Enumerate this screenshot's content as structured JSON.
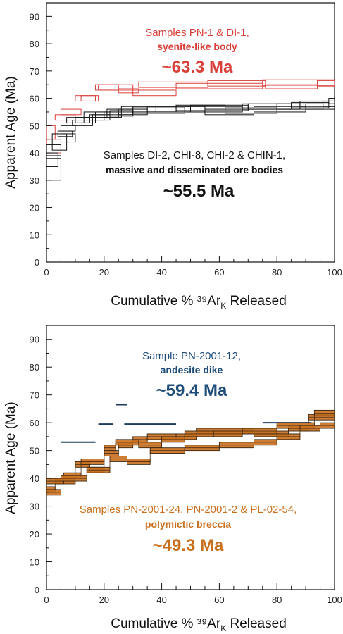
{
  "chart_data": [
    {
      "type": "line",
      "title": "",
      "xlabel": "Cumulative % ³⁹Ar",
      "xlabel_sub": "K",
      "xlabel_tail": " Released",
      "ylabel": "Apparent Age (Ma)",
      "xlim": [
        0,
        100
      ],
      "ylim": [
        0,
        95
      ],
      "xticks": [
        "0",
        "20",
        "40",
        "60",
        "80",
        "100"
      ],
      "yticks": [
        "0",
        "10",
        "20",
        "30",
        "40",
        "50",
        "60",
        "70",
        "80",
        "90"
      ],
      "grid": false,
      "annotations": [
        {
          "text": "Samples PN-1 & DI-1,",
          "color": "#d9403a",
          "weight": "normal",
          "size": 15
        },
        {
          "text": "syenite-like body",
          "color": "#d9403a",
          "weight": "bold",
          "size": 14
        },
        {
          "text": "~63.3 Ma",
          "color": "#d9403a",
          "weight": "bold",
          "size": 24
        },
        {
          "text": "Samples DI-2, CHI-8, CHI-2 & CHIN-1,",
          "color": "#111111",
          "weight": "normal",
          "size": 15
        },
        {
          "text": "massive and disseminated ore bodies",
          "color": "#111111",
          "weight": "bold",
          "size": 14
        },
        {
          "text": "~55.5 Ma",
          "color": "#111111",
          "weight": "bold",
          "size": 24
        }
      ],
      "series": [
        {
          "color": "#d9403a",
          "steps": [
            [
              0,
              40,
              45
            ],
            [
              5,
              54,
              56
            ],
            [
              12,
              59,
              61
            ],
            [
              17,
              63,
              65
            ],
            [
              25,
              62,
              63.5
            ],
            [
              32,
              64,
              66
            ],
            [
              56,
              64.5,
              66.5
            ],
            [
              76,
              63.5,
              65
            ],
            [
              94,
              64.5,
              66.5
            ]
          ]
        },
        {
          "color": "#d9403a",
          "steps": [
            [
              0,
              45,
              50
            ],
            [
              3,
              52,
              54
            ],
            [
              10,
              59,
              61
            ],
            [
              18,
              63,
              65
            ],
            [
              30,
              61,
              63
            ],
            [
              45,
              63.5,
              65.5
            ],
            [
              75,
              64.8,
              66.8
            ]
          ]
        },
        {
          "color": "#111111",
          "steps": [
            [
              0,
              30,
              38
            ],
            [
              5,
              48,
              50
            ],
            [
              10,
              51,
              53
            ],
            [
              15,
              52,
              54
            ],
            [
              20,
              53,
              55
            ],
            [
              25,
              54,
              56
            ],
            [
              35,
              55,
              57
            ],
            [
              50,
              55.5,
              57.5
            ],
            [
              70,
              56,
              58
            ],
            [
              85,
              56.5,
              58.5
            ],
            [
              98,
              58,
              60
            ]
          ]
        },
        {
          "color": "#111111",
          "steps": [
            [
              0,
              35,
              40
            ],
            [
              4,
              46,
              48
            ],
            [
              9,
              50,
              52
            ],
            [
              16,
              52,
              54
            ],
            [
              22,
              53.5,
              55.5
            ],
            [
              30,
              54.5,
              56.5
            ],
            [
              48,
              55,
              57
            ],
            [
              68,
              56,
              58
            ],
            [
              88,
              57,
              59
            ]
          ]
        },
        {
          "color": "#111111",
          "steps": [
            [
              0,
              39,
              43
            ],
            [
              5,
              44,
              47
            ],
            [
              10,
              51,
              53
            ],
            [
              17,
              53,
              55
            ],
            [
              26,
              55,
              57
            ],
            [
              38,
              55,
              57
            ],
            [
              55,
              54,
              56
            ],
            [
              72,
              55,
              57
            ],
            [
              90,
              56,
              58
            ]
          ]
        },
        {
          "color": "#111111",
          "steps": [
            [
              2,
              41,
              47
            ],
            [
              7,
              51,
              53
            ],
            [
              13,
              53,
              55
            ],
            [
              21,
              54,
              56
            ],
            [
              30,
              55,
              57
            ],
            [
              45,
              55.5,
              57.5
            ],
            [
              62,
              54.5,
              56.5
            ],
            [
              80,
              56,
              58
            ],
            [
              96,
              57,
              59
            ]
          ]
        }
      ]
    },
    {
      "type": "line",
      "title": "",
      "xlabel": "Cumulative % ³⁹Ar",
      "xlabel_sub": "K",
      "xlabel_tail": " Released",
      "ylabel": "Apparent Age (Ma)",
      "xlim": [
        0,
        100
      ],
      "ylim": [
        0,
        95
      ],
      "xticks": [
        "0",
        "20",
        "40",
        "60",
        "80",
        "100"
      ],
      "yticks": [
        "0",
        "10",
        "20",
        "30",
        "40",
        "50",
        "60",
        "70",
        "80",
        "90"
      ],
      "grid": false,
      "annotations": [
        {
          "text": "Sample PN-2001-12,",
          "color": "#1e4d7a",
          "weight": "normal",
          "size": 15
        },
        {
          "text": "andesite dike",
          "color": "#1e4d7a",
          "weight": "bold",
          "size": 14
        },
        {
          "text": "~59.4 Ma",
          "color": "#1e4d7a",
          "weight": "bold",
          "size": 24
        },
        {
          "text": "Samples PN-2001-24, PN-2001-2 & PL-02-54,",
          "color": "#c8701e",
          "weight": "normal",
          "size": 15
        },
        {
          "text": "polymictic breccia",
          "color": "#c8701e",
          "weight": "bold",
          "size": 14
        },
        {
          "text": "~49.3 Ma",
          "color": "#c8701e",
          "weight": "bold",
          "size": 24
        }
      ],
      "plateau_segments": {
        "color": "#1e3a5f",
        "segments": [
          [
            0,
            4,
            40
          ],
          [
            5,
            17,
            53
          ],
          [
            18,
            23,
            59.5
          ],
          [
            24,
            28,
            66.5
          ],
          [
            27,
            45,
            59.5
          ],
          [
            75,
            92,
            60
          ]
        ]
      },
      "series": [
        {
          "color": "#c8701e",
          "steps": [
            [
              0,
              35,
              37
            ],
            [
              3,
              38,
              40
            ],
            [
              10,
              44,
              46
            ],
            [
              15,
              42,
              44
            ],
            [
              20,
              48,
              50
            ],
            [
              25,
              51,
              53
            ],
            [
              30,
              53,
              55
            ],
            [
              35,
              54,
              56
            ],
            [
              45,
              54,
              56
            ],
            [
              52,
              56,
              58
            ],
            [
              62,
              56,
              58
            ],
            [
              72,
              55,
              57
            ],
            [
              84,
              57,
              59
            ],
            [
              91,
              61,
              63
            ]
          ]
        },
        {
          "color": "#c8701e",
          "steps": [
            [
              0,
              38,
              40
            ],
            [
              6,
              40,
              42
            ],
            [
              12,
              45,
              47
            ],
            [
              20,
              50,
              52
            ],
            [
              24,
              52,
              54
            ],
            [
              32,
              51,
              53
            ],
            [
              40,
              53,
              55
            ],
            [
              48,
              55,
              57
            ],
            [
              58,
              55,
              57
            ],
            [
              68,
              56,
              58
            ],
            [
              80,
              58,
              60
            ],
            [
              93,
              62.5,
              64.5
            ]
          ]
        },
        {
          "color": "#c8701e",
          "steps": [
            [
              0,
              34,
              36
            ],
            [
              5,
              39,
              41
            ],
            [
              14,
              42,
              44
            ],
            [
              22,
              46,
              48
            ],
            [
              28,
              45,
              47
            ],
            [
              36,
              49,
              51
            ],
            [
              48,
              50,
              52
            ],
            [
              60,
              51,
              53
            ],
            [
              72,
              52,
              54
            ],
            [
              80,
              54,
              56
            ],
            [
              88,
              57,
              59
            ],
            [
              95,
              58,
              60
            ]
          ]
        }
      ]
    }
  ]
}
